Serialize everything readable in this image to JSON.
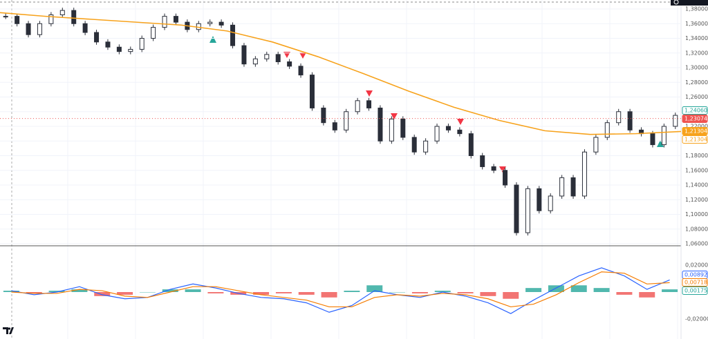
{
  "chart_data": {
    "type": "candlestick",
    "closes": [
      1.37,
      1.36,
      1.345,
      1.36,
      1.372,
      1.378,
      1.36,
      1.348,
      1.335,
      1.328,
      1.322,
      1.325,
      1.34,
      1.355,
      1.37,
      1.362,
      1.352,
      1.36,
      1.362,
      1.358,
      1.33,
      1.305,
      1.312,
      1.318,
      1.308,
      1.302,
      1.29,
      1.245,
      1.225,
      1.215,
      1.24,
      1.255,
      1.245,
      1.2,
      1.23,
      1.205,
      1.185,
      1.2,
      1.22,
      1.215,
      1.21,
      1.18,
      1.165,
      1.16,
      1.14,
      1.075,
      1.135,
      1.105,
      1.125,
      1.15,
      1.125,
      1.185,
      1.205,
      1.225,
      1.24,
      1.215,
      1.21,
      1.195,
      1.22,
      1.235
    ],
    "up_color": "#ffffff",
    "down_color": "#2a2e39",
    "moving_average": {
      "color": "#f7a21b",
      "values": [
        1.375,
        1.37,
        1.366,
        1.362,
        1.358,
        1.35,
        1.335,
        1.315,
        1.292,
        1.268,
        1.246,
        1.228,
        1.214,
        1.209,
        1.21,
        1.213
      ]
    },
    "ylim": [
      1.06,
      1.38
    ],
    "yticks": [
      {
        "value": 1.38,
        "label": "1,38000"
      },
      {
        "value": 1.36,
        "label": "1,36000"
      },
      {
        "value": 1.34,
        "label": "1,34000"
      },
      {
        "value": 1.32,
        "label": "1,32000"
      },
      {
        "value": 1.3,
        "label": "1,30000"
      },
      {
        "value": 1.28,
        "label": "1,28000"
      },
      {
        "value": 1.26,
        "label": "1,26000"
      },
      {
        "value": 1.24,
        "label": "1,24000"
      },
      {
        "value": 1.22,
        "label": "1,22000"
      },
      {
        "value": 1.2,
        "label": "1,20000"
      },
      {
        "value": 1.18,
        "label": "1,18000"
      },
      {
        "value": 1.16,
        "label": "1,16000"
      },
      {
        "value": 1.14,
        "label": "1,14000"
      },
      {
        "value": 1.12,
        "label": "1,12000"
      },
      {
        "value": 1.1,
        "label": "1,10000"
      },
      {
        "value": 1.08,
        "label": "1,08000"
      },
      {
        "value": 1.06,
        "label": "1,06000"
      }
    ],
    "price_tags": [
      {
        "value": 1.2406,
        "label": "1,24060",
        "color": "#26a69a",
        "filled": false
      },
      {
        "value": 1.23074,
        "label": "1,23074",
        "color": "#ef5350",
        "filled": true
      },
      {
        "value": 1.21304,
        "label": "1,21304",
        "color": "#f7a21b",
        "filled": true
      },
      {
        "value": 1.21304,
        "label": "1,21304",
        "color": "#f7a21b",
        "filled": false
      }
    ],
    "macd": {
      "macd_color": "#2962ff",
      "signal_color": "#f57c00",
      "macd": [
        0.001,
        -0.002,
        0.0,
        0.004,
        -0.002,
        -0.005,
        -0.004,
        0.002,
        0.006,
        0.003,
        -0.001,
        -0.004,
        -0.005,
        -0.008,
        -0.015,
        -0.01,
        0.001,
        -0.002,
        -0.004,
        0.0,
        -0.003,
        -0.008,
        -0.016,
        -0.006,
        0.003,
        0.012,
        0.018,
        0.012,
        0.002,
        0.009
      ],
      "signal": [
        0.0,
        -0.001,
        -0.001,
        0.002,
        0.001,
        -0.003,
        -0.004,
        0.0,
        0.004,
        0.004,
        0.001,
        -0.002,
        -0.004,
        -0.006,
        -0.011,
        -0.011,
        -0.004,
        -0.002,
        -0.003,
        -0.001,
        -0.002,
        -0.005,
        -0.011,
        -0.009,
        -0.002,
        0.007,
        0.015,
        0.014,
        0.006,
        0.007
      ],
      "histogram": [
        0.001,
        -0.001,
        0.001,
        0.002,
        -0.003,
        -0.002,
        0.0,
        0.002,
        0.002,
        -0.001,
        -0.002,
        -0.002,
        -0.001,
        -0.002,
        -0.004,
        0.001,
        0.005,
        0.0,
        -0.001,
        0.001,
        -0.001,
        -0.003,
        -0.005,
        0.003,
        0.005,
        0.005,
        0.003,
        -0.002,
        -0.004,
        0.002
      ],
      "positive_color": "#26a69a",
      "negative_color": "#ef5350",
      "ylim": [
        -0.02,
        0.02
      ],
      "yticks": [
        {
          "value": 0.02,
          "label": "0,02000"
        },
        {
          "value": -0.02,
          "label": "-0,02000"
        }
      ],
      "tags": [
        {
          "value": 0.00892,
          "label": "0,00892",
          "color": "#2962ff"
        },
        {
          "value": 0.00718,
          "label": "0,00718",
          "color": "#f57c00"
        },
        {
          "value": 0.00175,
          "label": "0,00175",
          "color": "#26a69a"
        }
      ]
    }
  }
}
